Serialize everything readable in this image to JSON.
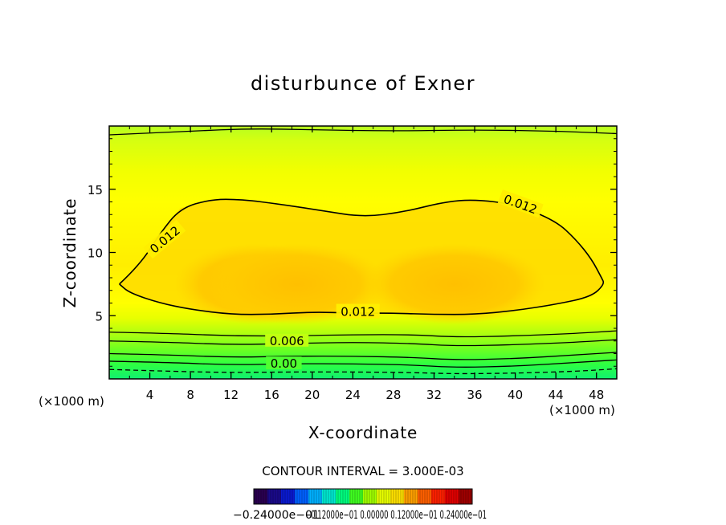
{
  "chart_data": {
    "type": "contour",
    "title": "disturbunce of Exner",
    "xlabel": "X-coordinate",
    "ylabel": "Z-coordinate",
    "x_unit": "(×1000 m)",
    "x_unit_right": "(×1000 m)",
    "xlim": [
      0,
      50
    ],
    "ylim": [
      0,
      20
    ],
    "x_ticks": [
      4,
      8,
      12,
      16,
      20,
      24,
      28,
      32,
      36,
      40,
      44,
      48
    ],
    "x_tick_labels": [
      "4",
      "8",
      "12",
      "16",
      "20",
      "24",
      "28",
      "32",
      "36",
      "40",
      "44",
      "48"
    ],
    "y_ticks": [
      5,
      10,
      15
    ],
    "y_tick_labels": [
      "5",
      "10",
      "15"
    ],
    "contour_interval_text": "CONTOUR INTERVAL = 3.000E-03",
    "contour_labels": [
      {
        "text": "0.012",
        "x": 5.5,
        "z": 11.0,
        "angle": -40
      },
      {
        "text": "0.012",
        "x": 40.5,
        "z": 13.8,
        "angle": 20
      },
      {
        "text": "0.012",
        "x": 24.5,
        "z": 5.3,
        "angle": 0
      },
      {
        "text": "0.006",
        "x": 17.5,
        "z": 3.0,
        "angle": 0
      },
      {
        "text": "0.00",
        "x": 17.2,
        "z": 1.2,
        "angle": 0
      }
    ],
    "contours": [
      {
        "level": 0.012,
        "closed": true,
        "points": [
          [
            1,
            7.5
          ],
          [
            3,
            9
          ],
          [
            5,
            11.5
          ],
          [
            7,
            13.5
          ],
          [
            10,
            14.2
          ],
          [
            13,
            14.2
          ],
          [
            17,
            13.8
          ],
          [
            21,
            13.3
          ],
          [
            25,
            12.8
          ],
          [
            29,
            13.2
          ],
          [
            33,
            14
          ],
          [
            36,
            14.2
          ],
          [
            40,
            13.8
          ],
          [
            44,
            12.5
          ],
          [
            46,
            11
          ],
          [
            47.5,
            9.5
          ],
          [
            48.5,
            8
          ],
          [
            48.8,
            7.5
          ],
          [
            47.5,
            6.5
          ],
          [
            44,
            5.9
          ],
          [
            40,
            5.4
          ],
          [
            36,
            5.1
          ],
          [
            32,
            5.1
          ],
          [
            28,
            5.2
          ],
          [
            24,
            5.2
          ],
          [
            20,
            5.3
          ],
          [
            16,
            5.1
          ],
          [
            12,
            5.1
          ],
          [
            8,
            5.5
          ],
          [
            5,
            6
          ],
          [
            2,
            6.8
          ],
          [
            1,
            7.5
          ]
        ]
      },
      {
        "level": 0.009,
        "closed": false,
        "points": [
          [
            0,
            3.7
          ],
          [
            6,
            3.6
          ],
          [
            12,
            3.4
          ],
          [
            18,
            3.4
          ],
          [
            24,
            3.5
          ],
          [
            30,
            3.5
          ],
          [
            34,
            3.3
          ],
          [
            40,
            3.4
          ],
          [
            46,
            3.6
          ],
          [
            50,
            3.8
          ]
        ]
      },
      {
        "level": 0.006,
        "closed": false,
        "points": [
          [
            0,
            3.0
          ],
          [
            6,
            2.9
          ],
          [
            12,
            2.7
          ],
          [
            18,
            2.8
          ],
          [
            24,
            2.9
          ],
          [
            30,
            2.8
          ],
          [
            34,
            2.6
          ],
          [
            40,
            2.7
          ],
          [
            46,
            2.9
          ],
          [
            50,
            3.1
          ]
        ]
      },
      {
        "level": 0.003,
        "closed": false,
        "points": [
          [
            0,
            2.0
          ],
          [
            6,
            1.9
          ],
          [
            12,
            1.7
          ],
          [
            18,
            1.8
          ],
          [
            24,
            1.8
          ],
          [
            30,
            1.7
          ],
          [
            34,
            1.5
          ],
          [
            40,
            1.6
          ],
          [
            46,
            1.9
          ],
          [
            50,
            2.1
          ]
        ]
      },
      {
        "level": 0.0,
        "closed": false,
        "points": [
          [
            0,
            1.4
          ],
          [
            6,
            1.3
          ],
          [
            12,
            1.1
          ],
          [
            18,
            1.2
          ],
          [
            24,
            1.2
          ],
          [
            30,
            1.1
          ],
          [
            34,
            0.9
          ],
          [
            40,
            1.0
          ],
          [
            46,
            1.3
          ],
          [
            50,
            1.5
          ]
        ]
      },
      {
        "level": -0.003,
        "closed": false,
        "dashed": true,
        "points": [
          [
            0,
            0.75
          ],
          [
            6,
            0.6
          ],
          [
            12,
            0.5
          ],
          [
            18,
            0.55
          ],
          [
            24,
            0.55
          ],
          [
            30,
            0.5
          ],
          [
            34,
            0.4
          ],
          [
            40,
            0.45
          ],
          [
            46,
            0.6
          ],
          [
            50,
            0.8
          ]
        ]
      },
      {
        "level": 0.003,
        "closed": false,
        "points": [
          [
            0,
            19.3
          ],
          [
            8,
            19.6
          ],
          [
            14,
            19.8
          ],
          [
            20,
            19.7
          ],
          [
            28,
            19.6
          ],
          [
            36,
            19.7
          ],
          [
            44,
            19.6
          ],
          [
            50,
            19.4
          ]
        ]
      }
    ],
    "colorbar": {
      "label_text": "−0.24000e−01",
      "label_overlap": "−0.12000e−01  0.00000  0.12000e−01  0.24000e−01",
      "colors": [
        "#2a0050",
        "#1a0a8a",
        "#0a1ad0",
        "#0060ff",
        "#00b0ff",
        "#00e8d0",
        "#00ff80",
        "#40ff20",
        "#a0ff00",
        "#e8ff00",
        "#ffe000",
        "#ffa000",
        "#ff6000",
        "#ff2000",
        "#e00000",
        "#a00000"
      ]
    },
    "grid": false
  }
}
